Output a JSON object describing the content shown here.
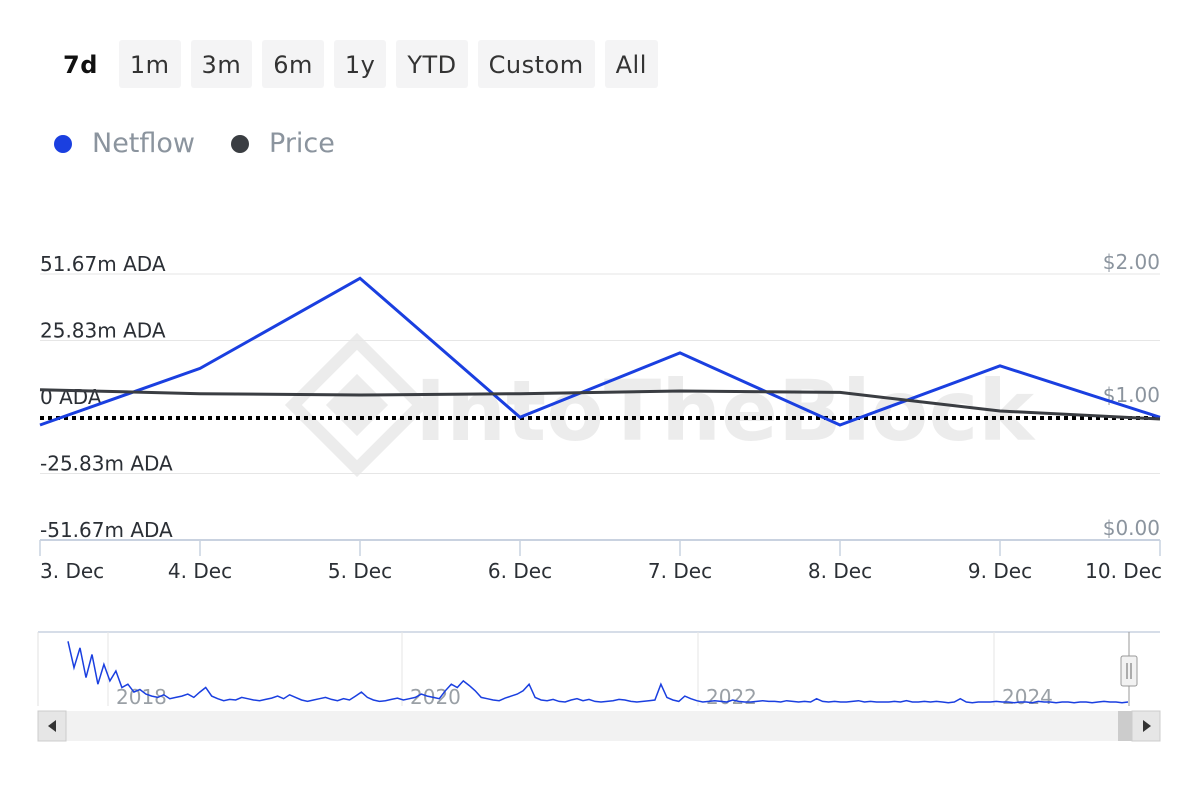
{
  "toolbar": {
    "ranges": [
      {
        "label": "7d",
        "active": true
      },
      {
        "label": "1m"
      },
      {
        "label": "3m"
      },
      {
        "label": "6m"
      },
      {
        "label": "1y"
      },
      {
        "label": "YTD"
      },
      {
        "label": "Custom"
      },
      {
        "label": "All"
      }
    ]
  },
  "legend": [
    {
      "label": "Netflow",
      "color": "#1a3fe0"
    },
    {
      "label": "Price",
      "color": "#3a3d42"
    }
  ],
  "watermark": "IntoTheBlock",
  "chart_data": {
    "type": "line",
    "categories": [
      "3. Dec",
      "4. Dec",
      "5. Dec",
      "6. Dec",
      "7. Dec",
      "8. Dec",
      "9. Dec",
      "10. Dec"
    ],
    "y_left": {
      "ticks": [
        "51.67m ADA",
        "25.83m ADA",
        "0 ADA",
        "-25.83m ADA",
        "-51.67m ADA"
      ],
      "range": [
        -51.67,
        51.67
      ],
      "unit": "m ADA"
    },
    "y_right": {
      "ticks": [
        "$2.00",
        "$1.00",
        "$0.00"
      ],
      "range": [
        0,
        2
      ]
    },
    "series": [
      {
        "name": "Netflow",
        "axis": "left",
        "color": "#1a3fe0",
        "values": [
          -7,
          15,
          50,
          -4,
          21,
          -7,
          16,
          -4
        ]
      },
      {
        "name": "Price",
        "axis": "right",
        "color": "#3a3d42",
        "values": [
          1.13,
          1.1,
          1.09,
          1.1,
          1.12,
          1.11,
          0.97,
          0.91
        ]
      }
    ],
    "zero_line": "dotted"
  },
  "navigator": {
    "year_labels": [
      "2018",
      "2020",
      "2022",
      "2024"
    ],
    "series": [
      95,
      55,
      85,
      40,
      75,
      30,
      60,
      35,
      50,
      25,
      30,
      18,
      22,
      15,
      12,
      10,
      14,
      8,
      10,
      12,
      15,
      10,
      18,
      25,
      12,
      8,
      5,
      7,
      6,
      10,
      8,
      6,
      5,
      7,
      9,
      12,
      8,
      14,
      10,
      6,
      4,
      6,
      8,
      10,
      7,
      5,
      8,
      6,
      12,
      18,
      10,
      6,
      4,
      5,
      7,
      9,
      6,
      8,
      10,
      15,
      12,
      10,
      8,
      20,
      30,
      25,
      35,
      28,
      20,
      10,
      8,
      6,
      5,
      9,
      12,
      15,
      20,
      30,
      10,
      6,
      5,
      7,
      4,
      3,
      6,
      8,
      5,
      7,
      4,
      3,
      4,
      5,
      7,
      6,
      4,
      3,
      4,
      5,
      6,
      30,
      10,
      6,
      4,
      12,
      8,
      5,
      3,
      4,
      5,
      4,
      3,
      6,
      4,
      3,
      3,
      4,
      5,
      4,
      4,
      3,
      5,
      4,
      3,
      4,
      3,
      8,
      4,
      3,
      4,
      3,
      3,
      4,
      5,
      3,
      4,
      3,
      3,
      3,
      4,
      3,
      5,
      3,
      3,
      4,
      3,
      4,
      3,
      2,
      3,
      8,
      3,
      2,
      3,
      3,
      3,
      4,
      3,
      3,
      2,
      3,
      3,
      2,
      4,
      3,
      3,
      2,
      3,
      3,
      2,
      3,
      3,
      2,
      3,
      4,
      3,
      3,
      2,
      3
    ]
  }
}
